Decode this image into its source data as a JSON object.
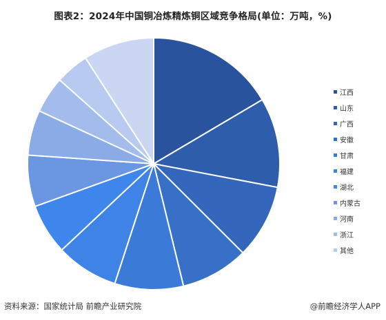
{
  "header": {
    "title": "图表2：2024年中国铜冶炼精炼铜区域竞争格局(单位：万吨，%)"
  },
  "footer": {
    "source": "资料来源：国家统计局 前瞻产业研究院",
    "brand": "@前瞻经济学人APP"
  },
  "chart_data": {
    "type": "pie",
    "title": "图表2：2024年中国铜冶炼精炼铜区域竞争格局(单位：万吨，%)",
    "legend_position": "right",
    "start_angle": "12 o'clock, clockwise",
    "slices": [
      {
        "label": "江西",
        "percent": 16.5,
        "color": "#2a539e"
      },
      {
        "label": "山东",
        "percent": 11.5,
        "color": "#2e5dac"
      },
      {
        "label": "广西",
        "percent": 9.5,
        "color": "#3467bb"
      },
      {
        "label": "安徽",
        "percent": 8.7,
        "color": "#3970c7"
      },
      {
        "label": "甘肃",
        "percent": 8.8,
        "color": "#3c7ad8"
      },
      {
        "label": "福建",
        "percent": 8.0,
        "color": "#3f83e6"
      },
      {
        "label": "湖北",
        "percent": 6.5,
        "color": "#3f86ec"
      },
      {
        "label": "内蒙古",
        "percent": 6.6,
        "color": "#6b97e2"
      },
      {
        "label": "河南",
        "percent": 5.8,
        "color": "#8aabe6"
      },
      {
        "label": "浙江",
        "percent": 4.7,
        "color": "#a4bcec"
      },
      {
        "label": "其他",
        "percent": 4.3,
        "color": "#b8caf0"
      },
      {
        "label": "其他",
        "percent": 9.1,
        "color": "#cad6f2"
      }
    ]
  }
}
